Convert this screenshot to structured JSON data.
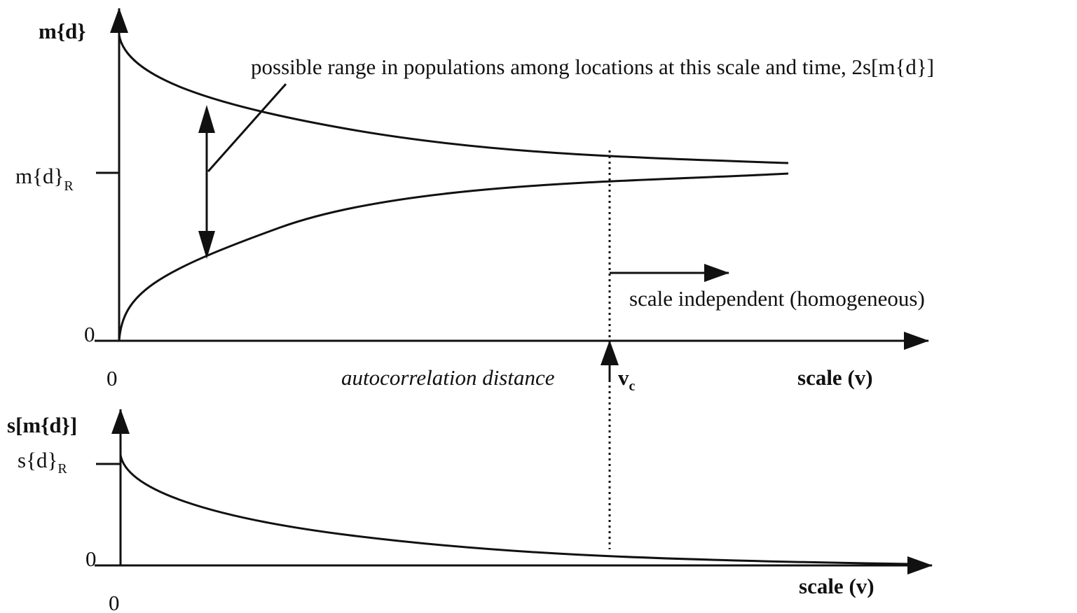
{
  "top_panel": {
    "y_axis_label": "m{d}",
    "y_reference": {
      "main": "m{d}",
      "sub": "R"
    },
    "y_origin": "0",
    "x_origin": "0",
    "range_annotation": "possible range in populations among locations at this scale and time, 2s[m{d}]",
    "independence_annotation": "scale independent (homogeneous)",
    "distance_label": "autocorrelation distance",
    "critical_scale": {
      "main": "v",
      "sub": "c"
    },
    "x_axis_label": "scale (v)"
  },
  "bottom_panel": {
    "y_axis_label": "s[m{d}]",
    "y_reference": {
      "main": "s{d}",
      "sub": "R"
    },
    "y_origin": "0",
    "x_origin": "0",
    "x_axis_label": "scale (v)"
  }
}
